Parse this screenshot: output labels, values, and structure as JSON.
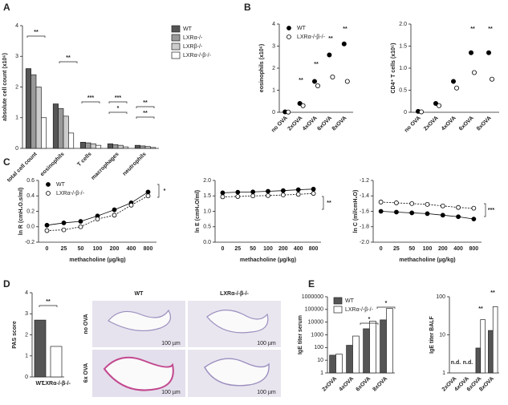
{
  "panel_labels": [
    "A",
    "B",
    "C",
    "D",
    "E"
  ],
  "histology": {
    "columns": [
      "WT",
      "LXRα-/-β-/-"
    ],
    "rows": [
      "no OVA",
      "6x OVA"
    ],
    "scale_bar": "100 µm"
  },
  "chart_data": [
    {
      "type": "bar",
      "ylabel": "absolute cell count (x10⁶)",
      "categories": [
        "total cell count",
        "eosinophils",
        "T cells",
        "macrophages",
        "neutrophils"
      ],
      "series": [
        {
          "name": "WT",
          "color": "#555555",
          "values": [
            2.6,
            1.45,
            0.2,
            0.15,
            0.1
          ]
        },
        {
          "name": "LXRα-/-",
          "color": "#999999",
          "values": [
            2.4,
            1.3,
            0.18,
            0.12,
            0.08
          ]
        },
        {
          "name": "LXRβ-/-",
          "color": "#cccccc",
          "values": [
            2.0,
            1.05,
            0.15,
            0.1,
            0.06
          ]
        },
        {
          "name": "LXRα-/-β-/-",
          "color": "#ffffff",
          "values": [
            1.0,
            0.5,
            0.1,
            0.05,
            0.03
          ]
        }
      ],
      "ylim": [
        0,
        4
      ],
      "yticks": [
        0,
        1,
        2,
        3,
        4
      ],
      "legend": "right",
      "annotations": [
        "**",
        "**",
        "***",
        "***",
        "*",
        "**",
        "**"
      ]
    },
    {
      "type": "dot",
      "ylabel": "eosinophils (x10⁶)",
      "categories": [
        "no OVA",
        "2xOVA",
        "4xOVA",
        "6xOVA",
        "8xOVA"
      ],
      "series": [
        {
          "name": "WT",
          "color": "#000000",
          "values": [
            0.02,
            0.4,
            1.4,
            2.6,
            3.1
          ]
        },
        {
          "name": "LXRα-/-β-/-",
          "color": "#ffffff",
          "values": [
            0.01,
            0.3,
            1.2,
            1.6,
            1.4
          ]
        }
      ],
      "ylim": [
        0,
        4
      ],
      "yticks": [
        0,
        1,
        2,
        3,
        4
      ],
      "legend": "upper left",
      "annotations": [
        "**",
        "**",
        "**",
        "**"
      ]
    },
    {
      "type": "dot",
      "ylabel": "CD4⁺ T cells (x10⁵)",
      "categories": [
        "no OVA",
        "2xOVA",
        "4xOVA",
        "6xOVA",
        "8xOVA"
      ],
      "series": [
        {
          "name": "WT",
          "color": "#000000",
          "values": [
            0.02,
            0.2,
            0.7,
            1.35,
            1.35
          ]
        },
        {
          "name": "LXRα-/-β-/-",
          "color": "#ffffff",
          "values": [
            0.01,
            0.15,
            0.55,
            0.9,
            0.75
          ]
        }
      ],
      "ylim": [
        0,
        2
      ],
      "yticks": [
        0,
        0.5,
        {
          "value": 1,
          "label": "1.0"
        },
        1.5,
        {
          "value": 2,
          "label": "2.0"
        }
      ],
      "annotations": [
        "**",
        "**"
      ]
    },
    {
      "type": "line",
      "ylabel": "ln R (cmH₂O.s/ml)",
      "xlabel": "methacholine (µg/kg)",
      "categories": [
        "0",
        "25",
        "50",
        "100",
        "200",
        "400",
        "800"
      ],
      "series": [
        {
          "name": "WT",
          "color": "#000000",
          "values": [
            0.02,
            0.05,
            0.07,
            0.14,
            0.22,
            0.31,
            0.45
          ]
        },
        {
          "name": "LXRα-/-β-/-",
          "color": "#ffffff",
          "values": [
            -0.05,
            -0.04,
            0.0,
            0.1,
            0.15,
            0.28,
            0.4
          ]
        }
      ],
      "ylim": [
        -0.2,
        0.6
      ],
      "yticks": [
        -0.2,
        {
          "value": 0,
          "label": "0.0"
        },
        0.2,
        0.4,
        0.6
      ],
      "legend": "upper left",
      "annotations": [
        "*"
      ]
    },
    {
      "type": "line",
      "ylabel": "ln E (cmH₂O/ml)",
      "xlabel": "methacholine (µg/kg)",
      "categories": [
        "0",
        "25",
        "50",
        "100",
        "200",
        "400",
        "800"
      ],
      "series": [
        {
          "name": "WT",
          "color": "#000000",
          "values": [
            1.6,
            1.62,
            1.63,
            1.65,
            1.67,
            1.7,
            1.72
          ]
        },
        {
          "name": "LXRα-/-β-/-",
          "color": "#ffffff",
          "values": [
            1.47,
            1.48,
            1.5,
            1.51,
            1.53,
            1.55,
            1.58
          ]
        }
      ],
      "ylim": [
        0,
        2
      ],
      "yticks": [
        {
          "value": 0,
          "label": "0.0"
        },
        0.5,
        {
          "value": 1,
          "label": "1.0"
        },
        1.5,
        {
          "value": 2,
          "label": "2.0"
        }
      ],
      "annotations": [
        "**"
      ]
    },
    {
      "type": "line",
      "ylabel": "ln C (ml/cmH₂O)",
      "xlabel": "methacholine (µg/kg)",
      "categories": [
        "0",
        "25",
        "50",
        "100",
        "200",
        "400",
        "800"
      ],
      "series": [
        {
          "name": "WT",
          "color": "#000000",
          "values": [
            -1.6,
            -1.61,
            -1.62,
            -1.63,
            -1.65,
            -1.67,
            -1.7
          ]
        },
        {
          "name": "LXRα-/-β-/-",
          "color": "#ffffff",
          "values": [
            -1.48,
            -1.49,
            -1.5,
            -1.51,
            -1.53,
            -1.55,
            -1.56
          ]
        }
      ],
      "ylim": [
        -2,
        -1.2
      ],
      "yticks": [
        {
          "value": -2,
          "label": "-2.0"
        },
        -1.8,
        -1.6,
        -1.4,
        -1.2
      ],
      "annotations": [
        "***"
      ]
    },
    {
      "type": "bar",
      "ylabel": "PAS score",
      "categories": [
        "WT",
        "LXRα-/-β-/-"
      ],
      "values": [
        2.7,
        1.45
      ],
      "colors": [
        "#555555",
        "#ffffff"
      ],
      "ylim": [
        0,
        4
      ],
      "yticks": [
        0,
        1,
        2,
        3,
        4
      ],
      "annotations": [
        "**"
      ]
    },
    {
      "type": "bar",
      "ylabel": "IgE titer serum",
      "categories": [
        "2xOVA",
        "4xOVA",
        "6xOVA",
        "8xOVA"
      ],
      "series": [
        {
          "name": "WT",
          "color": "#555555",
          "values": [
            25,
            150,
            3000,
            15000
          ]
        },
        {
          "name": "LXRα-/-β-/-",
          "color": "#ffffff",
          "values": [
            30,
            800,
            12000,
            120000
          ]
        }
      ],
      "ylim": [
        1,
        1000000
      ],
      "yticks": [
        1,
        10,
        100,
        1000,
        10000,
        100000,
        1000000
      ],
      "log_y": true,
      "legend": "upper left",
      "annotations": [
        "*",
        "*"
      ]
    },
    {
      "type": "bar",
      "ylabel": "IgE titer BALF",
      "categories": [
        "2xOVA",
        "4xOVA",
        "6xOVA",
        "8xOVA"
      ],
      "series": [
        {
          "name": "WT",
          "color": "#555555",
          "values": [
            null,
            null,
            4.5,
            13
          ]
        },
        {
          "name": "LXRα-/-β-/-",
          "color": "#ffffff",
          "values": [
            null,
            null,
            25,
            55
          ]
        }
      ],
      "ylim": [
        1,
        100
      ],
      "yticks": [
        1,
        10,
        100
      ],
      "log_y": true,
      "annotations": [
        "n.d.",
        "n.d.",
        "**",
        "**"
      ]
    }
  ]
}
